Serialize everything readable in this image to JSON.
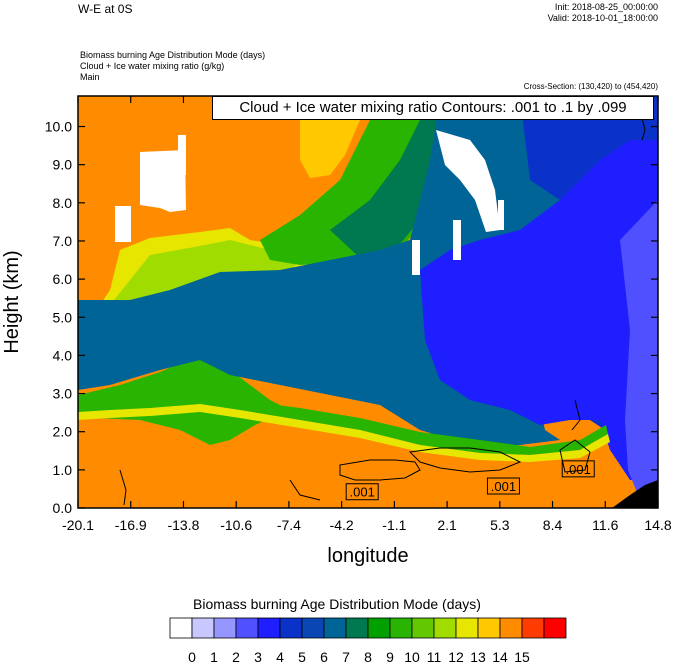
{
  "header": {
    "title": "W-E at 0S",
    "init": "Init: 2018-08-25_00:00:00",
    "valid": "Valid: 2018-10-01_18:00:00",
    "field_lines": [
      "Biomass burning Age Distribution Mode    (days)",
      "Cloud + Ice water mixing ratio    (g/kg)",
      "Main"
    ],
    "cross_section": "Cross-Section: (130,420) to (454,420)",
    "contour_info": "Cloud + Ice water mixing ratio Contours: .001 to .1 by .099"
  },
  "chart_data": {
    "type": "heatmap",
    "xlabel": "longitude",
    "ylabel": "Height (km)",
    "xlim": [
      -20.1,
      14.8
    ],
    "ylim": [
      0,
      10.8
    ],
    "x_ticks": [
      "-20.1",
      "-16.9",
      "-13.8",
      "-10.6",
      "-7.4",
      "-4.2",
      "-1.1",
      "2.1",
      "5.3",
      "8.4",
      "11.6",
      "14.8"
    ],
    "y_ticks": [
      "0.0",
      "1.0",
      "2.0",
      "3.0",
      "4.0",
      "5.0",
      "6.0",
      "7.0",
      "8.0",
      "9.0",
      "10.0"
    ],
    "contour_labels": [
      {
        "text": ".001",
        "x": -3.0,
        "y": 0.4
      },
      {
        "text": ".001",
        "x": 5.5,
        "y": 0.55
      },
      {
        "text": ".001",
        "x": 10.0,
        "y": 1.0
      }
    ],
    "colorbar": {
      "title": "Biomass burning Age Distribution Mode  (days)",
      "labels": [
        "0",
        "1",
        "2",
        "3",
        "4",
        "5",
        "6",
        "7",
        "8",
        "9",
        "10",
        "11",
        "12",
        "13",
        "14",
        "15"
      ],
      "colors": [
        "#ffffff",
        "#c8c8ff",
        "#9696ff",
        "#5050ff",
        "#1e1eff",
        "#0a32c8",
        "#0a46b4",
        "#006496",
        "#007850",
        "#00a000",
        "#28b400",
        "#64c800",
        "#a0dc00",
        "#e6e600",
        "#ffc800",
        "#ff8c00",
        "#ff3c00",
        "#ff0000"
      ]
    },
    "palette": {
      "orange": "#ff8c00",
      "gold": "#ffc800",
      "yellow": "#e6e600",
      "lightgreen": "#a0dc00",
      "green": "#28b400",
      "teal": "#006496",
      "navy": "#0a32c8",
      "blue": "#1e1eff",
      "lightblue": "#5050ff",
      "white": "#ffffff",
      "terrain": "#000000"
    }
  }
}
